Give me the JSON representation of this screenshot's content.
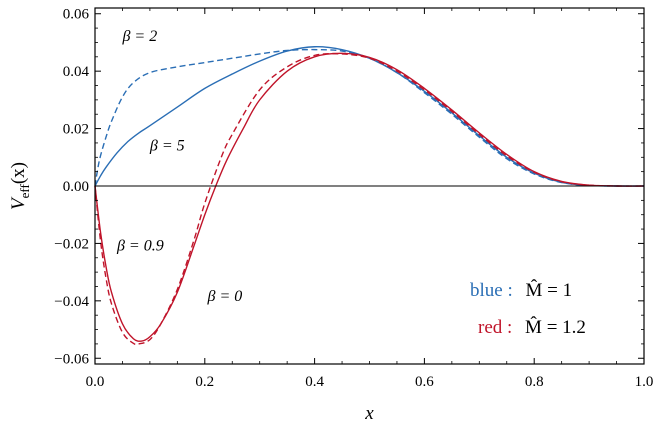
{
  "chart_data": {
    "type": "line",
    "xlabel": "x",
    "ylabel": "V_eff(x)",
    "ylabel_main": "V",
    "ylabel_sub": "eff",
    "ylabel_arg": "(x)",
    "xlim": [
      0,
      1
    ],
    "ylim": [
      -0.062,
      0.062
    ],
    "x_ticks": [
      0.0,
      0.2,
      0.4,
      0.6,
      0.8,
      1.0
    ],
    "x_tick_labels": [
      "0.0",
      "0.2",
      "0.4",
      "0.6",
      "0.8",
      "1.0"
    ],
    "y_ticks": [
      -0.06,
      -0.04,
      -0.02,
      0.0,
      0.02,
      0.04,
      0.06
    ],
    "y_tick_labels": [
      "−0.06",
      "−0.04",
      "−0.02",
      "0.00",
      "0.02",
      "0.04",
      "0.06"
    ],
    "grid": false,
    "zero_line": true,
    "colors": {
      "blue": "#2a6eb5",
      "red": "#c0142a",
      "axis": "#000000"
    },
    "annotations": [
      {
        "text": "β = 2",
        "x": 0.05,
        "y": 0.0505
      },
      {
        "text": "β = 5",
        "x": 0.1,
        "y": 0.0123
      },
      {
        "text": "β = 0.9",
        "x": 0.04,
        "y": -0.0225
      },
      {
        "text": "β = 0",
        "x": 0.205,
        "y": -0.04
      }
    ],
    "legend": {
      "position": "bottom-right",
      "entries": [
        {
          "label": "blue :",
          "value": "M̂ = 1",
          "color": "#2a6eb5"
        },
        {
          "label": "red :",
          "value": "M̂ = 1.2",
          "color": "#c0142a"
        }
      ]
    },
    "series": [
      {
        "color": "#2a6eb5",
        "dash": true,
        "x": [
          0,
          0.005,
          0.01,
          0.02,
          0.03,
          0.05,
          0.07,
          0.1,
          0.15,
          0.2,
          0.25,
          0.3,
          0.35,
          0.4,
          0.45,
          0.5,
          0.55,
          0.6,
          0.65,
          0.7,
          0.75,
          0.8,
          0.85,
          0.9,
          0.95,
          1.0
        ],
        "y": [
          0,
          0.006,
          0.0105,
          0.017,
          0.0225,
          0.031,
          0.036,
          0.0395,
          0.0415,
          0.043,
          0.0445,
          0.046,
          0.0472,
          0.0475,
          0.047,
          0.0445,
          0.0395,
          0.0325,
          0.025,
          0.017,
          0.0095,
          0.0042,
          0.0012,
          0.0002,
          0,
          0
        ]
      },
      {
        "color": "#2a6eb5",
        "dash": false,
        "x": [
          0,
          0.01,
          0.02,
          0.04,
          0.06,
          0.08,
          0.1,
          0.15,
          0.2,
          0.25,
          0.3,
          0.35,
          0.4,
          0.45,
          0.5,
          0.55,
          0.6,
          0.65,
          0.7,
          0.75,
          0.8,
          0.85,
          0.9,
          0.95,
          1.0
        ],
        "y": [
          0,
          0.0035,
          0.0065,
          0.0115,
          0.0155,
          0.0185,
          0.021,
          0.0275,
          0.034,
          0.039,
          0.0435,
          0.047,
          0.0485,
          0.0475,
          0.0445,
          0.0395,
          0.033,
          0.0255,
          0.0175,
          0.01,
          0.0045,
          0.0013,
          0.0002,
          0,
          0
        ]
      },
      {
        "color": "#c0142a",
        "dash": true,
        "x": [
          0,
          0.01,
          0.02,
          0.03,
          0.05,
          0.07,
          0.08,
          0.1,
          0.12,
          0.15,
          0.18,
          0.2,
          0.23,
          0.25,
          0.3,
          0.35,
          0.4,
          0.45,
          0.5,
          0.55,
          0.6,
          0.65,
          0.7,
          0.75,
          0.8,
          0.85,
          0.9,
          0.95,
          1.0
        ],
        "y": [
          0,
          -0.019,
          -0.032,
          -0.041,
          -0.051,
          -0.0548,
          -0.055,
          -0.0535,
          -0.048,
          -0.036,
          -0.019,
          -0.006,
          0.01,
          0.018,
          0.0335,
          0.0415,
          0.0455,
          0.046,
          0.0445,
          0.04,
          0.0335,
          0.026,
          0.018,
          0.0105,
          0.0048,
          0.0015,
          0.0003,
          0,
          0
        ]
      },
      {
        "color": "#c0142a",
        "dash": false,
        "x": [
          0,
          0.01,
          0.02,
          0.03,
          0.05,
          0.07,
          0.085,
          0.1,
          0.12,
          0.15,
          0.18,
          0.2,
          0.22,
          0.24,
          0.27,
          0.3,
          0.35,
          0.4,
          0.45,
          0.5,
          0.55,
          0.6,
          0.65,
          0.7,
          0.75,
          0.8,
          0.85,
          0.9,
          0.95,
          1.0
        ],
        "y": [
          0,
          -0.016,
          -0.028,
          -0.037,
          -0.048,
          -0.0532,
          -0.054,
          -0.0525,
          -0.048,
          -0.037,
          -0.021,
          -0.01,
          0.0,
          0.009,
          0.02,
          0.03,
          0.04,
          0.045,
          0.0462,
          0.0448,
          0.0405,
          0.034,
          0.0265,
          0.0185,
          0.011,
          0.005,
          0.0016,
          0.0003,
          0,
          0
        ]
      }
    ]
  }
}
